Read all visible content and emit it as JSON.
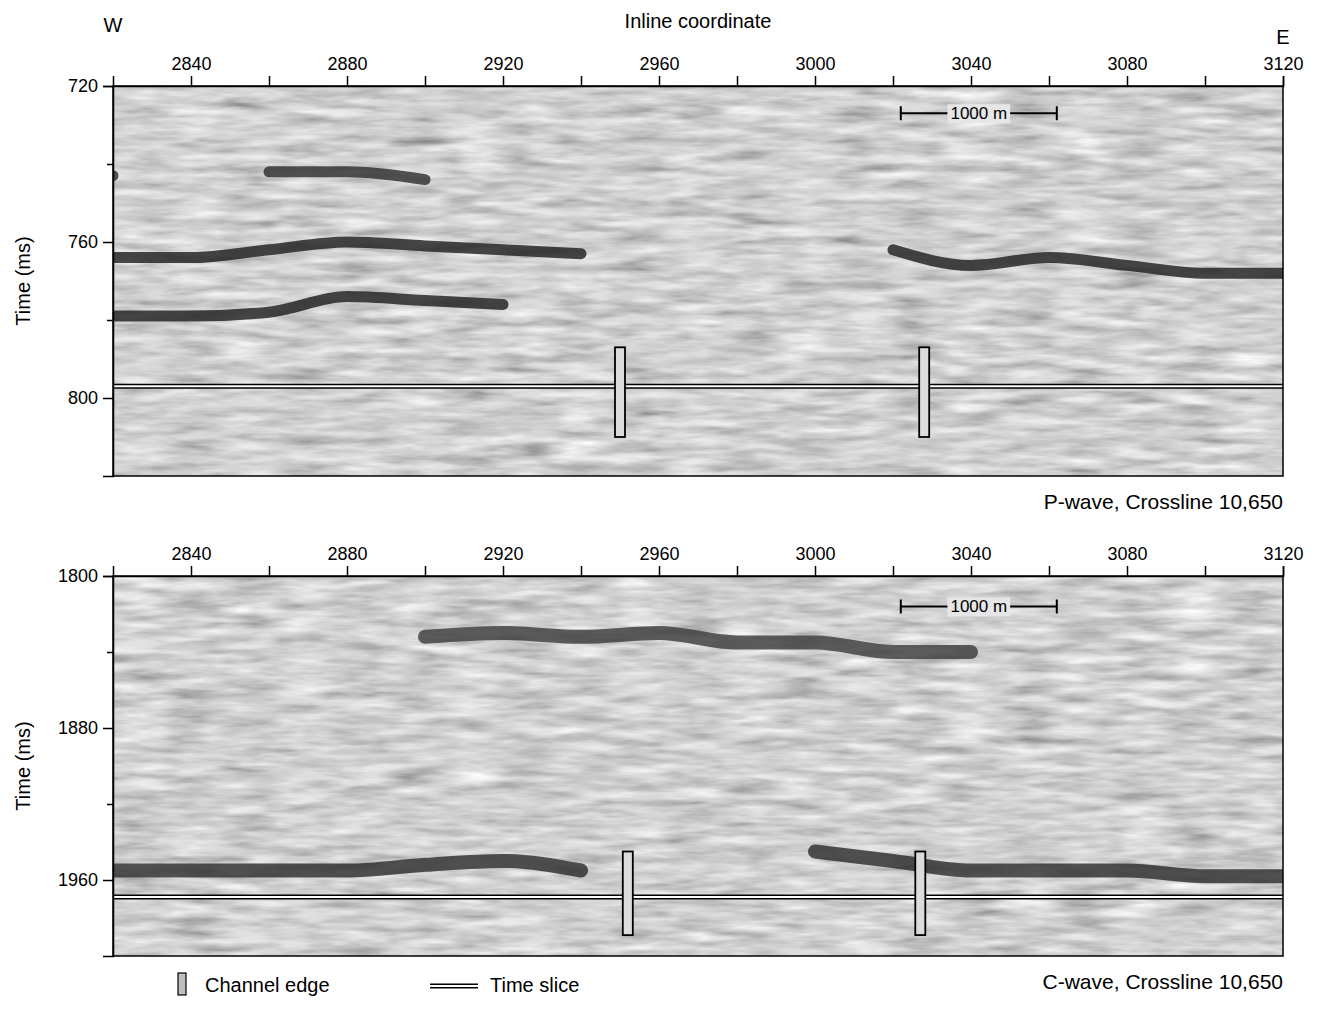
{
  "chart_data": [
    {
      "type": "seismic_section",
      "title": "P-wave, Crossline 10,650",
      "x_label": "Inline coordinate",
      "y_label": "Time (ms)",
      "left_label": "W",
      "right_label": "E",
      "xlim": [
        2820,
        3120
      ],
      "ylim": [
        720,
        820
      ],
      "xticks": [
        2840,
        2880,
        2920,
        2960,
        3000,
        3040,
        3080,
        3120
      ],
      "minor_xticks": [
        2860,
        2900,
        2940,
        2980,
        3020,
        3060,
        3100
      ],
      "yticks": [
        720,
        760,
        800
      ],
      "minor_yticks": [
        740,
        780
      ],
      "x": [
        2820,
        2840,
        2860,
        2880,
        2900,
        2920,
        2940,
        2960,
        2980,
        3000,
        3020,
        3040,
        3060,
        3080,
        3100,
        3120
      ],
      "series": [
        {
          "color": "#1c1c1c",
          "values": [
            764,
            764,
            762,
            760,
            761,
            762,
            763,
            null,
            null,
            null,
            762,
            766,
            764,
            766,
            768,
            768
          ]
        },
        {
          "color": "#1c1c1c",
          "values": [
            779,
            779,
            778,
            774,
            775,
            776,
            null,
            null,
            null,
            null,
            null,
            null,
            null,
            null,
            null,
            null
          ]
        },
        {
          "color": "#2a2a2a",
          "values": [
            743,
            null,
            742,
            742,
            744,
            null,
            null,
            null,
            null,
            null,
            null,
            null,
            null,
            null,
            null,
            null
          ]
        }
      ],
      "channel_edges": [
        {
          "x": 2950,
          "t0": 787,
          "t1": 810
        },
        {
          "x": 3028,
          "t0": 787,
          "t1": 810
        }
      ],
      "time_slice": 797,
      "scale_bar": {
        "label": "1000 m",
        "x0": 3022,
        "x1": 3062,
        "time": 727
      }
    },
    {
      "type": "seismic_section",
      "title": "C-wave, Crossline 10,650",
      "y_label": "Time (ms)",
      "xlim": [
        2820,
        3120
      ],
      "ylim": [
        1800,
        2000
      ],
      "xticks": [
        2840,
        2880,
        2920,
        2960,
        3000,
        3040,
        3080,
        3120
      ],
      "minor_xticks": [
        2860,
        2900,
        2940,
        2980,
        3020,
        3060,
        3100
      ],
      "yticks": [
        1800,
        1880,
        1960
      ],
      "minor_yticks": [
        1840,
        1920
      ],
      "x": [
        2820,
        2840,
        2860,
        2880,
        2900,
        2920,
        2940,
        2960,
        2980,
        3000,
        3020,
        3040,
        3060,
        3080,
        3100,
        3120
      ],
      "series": [
        {
          "color": "#2a2a2a",
          "values": [
            1955,
            1955,
            1955,
            1955,
            1952,
            1950,
            1955,
            null,
            null,
            1945,
            1950,
            1955,
            1955,
            1955,
            1958,
            1958
          ]
        },
        {
          "color": "#3a3a3a",
          "values": [
            null,
            null,
            null,
            null,
            1832,
            1830,
            1832,
            1830,
            1835,
            1835,
            1840,
            1840,
            null,
            null,
            null,
            null
          ]
        }
      ],
      "channel_edges": [
        {
          "x": 2952,
          "t0": 1945,
          "t1": 1989
        },
        {
          "x": 3027,
          "t0": 1945,
          "t1": 1989
        }
      ],
      "time_slice": 1969,
      "scale_bar": {
        "label": "1000 m",
        "x0": 3022,
        "x1": 3062,
        "time": 1816
      },
      "legend_entries": [
        "Channel edge",
        "Time slice"
      ],
      "legend": "bottom"
    }
  ]
}
